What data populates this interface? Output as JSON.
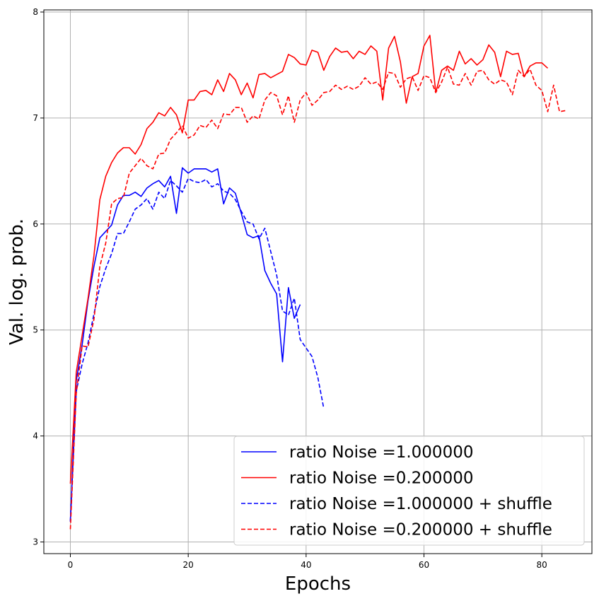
{
  "chart_data": {
    "type": "line",
    "title": "",
    "xlabel": "Epochs",
    "ylabel": "Val. log. prob.",
    "xlim": [
      -4.5,
      88.5
    ],
    "ylim": [
      2.89,
      8.02
    ],
    "xticks": [
      0,
      20,
      40,
      60,
      80
    ],
    "yticks": [
      3,
      4,
      5,
      6,
      7,
      8
    ],
    "xtick_labels": [
      "0",
      "20",
      "40",
      "60",
      "80"
    ],
    "ytick_labels": [
      "3",
      "4",
      "5",
      "6",
      "7",
      "8"
    ],
    "grid": true,
    "legend_position": "lower-right",
    "series": [
      {
        "name": "ratio Noise =1.000000",
        "color": "#0000ff",
        "dash": "solid",
        "y": [
          3.19,
          4.52,
          4.86,
          5.28,
          5.6,
          5.87,
          5.93,
          5.99,
          6.18,
          6.27,
          6.27,
          6.3,
          6.26,
          6.34,
          6.38,
          6.41,
          6.35,
          6.45,
          6.1,
          6.53,
          6.48,
          6.52,
          6.52,
          6.52,
          6.49,
          6.52,
          6.19,
          6.34,
          6.29,
          6.1,
          5.9,
          5.87,
          5.89,
          5.56,
          5.44,
          5.34,
          4.7,
          5.4,
          5.11,
          5.24
        ]
      },
      {
        "name": "ratio Noise =0.200000",
        "color": "#ff0000",
        "dash": "solid",
        "y": [
          3.55,
          4.6,
          4.95,
          5.3,
          5.7,
          6.23,
          6.45,
          6.58,
          6.67,
          6.72,
          6.72,
          6.66,
          6.75,
          6.9,
          6.96,
          7.05,
          7.02,
          7.1,
          7.03,
          6.86,
          7.17,
          7.17,
          7.25,
          7.26,
          7.22,
          7.36,
          7.25,
          7.42,
          7.36,
          7.22,
          7.33,
          7.19,
          7.41,
          7.42,
          7.38,
          7.41,
          7.44,
          7.6,
          7.57,
          7.51,
          7.5,
          7.64,
          7.62,
          7.45,
          7.58,
          7.66,
          7.62,
          7.63,
          7.56,
          7.63,
          7.6,
          7.68,
          7.63,
          7.17,
          7.66,
          7.77,
          7.53,
          7.14,
          7.39,
          7.42,
          7.68,
          7.78,
          7.24,
          7.45,
          7.49,
          7.45,
          7.63,
          7.51,
          7.56,
          7.5,
          7.55,
          7.69,
          7.62,
          7.39,
          7.63,
          7.6,
          7.61,
          7.39,
          7.49,
          7.52,
          7.52,
          7.47
        ]
      },
      {
        "name": "ratio Noise =1.000000 + shuffle",
        "color": "#0000ff",
        "dash": "dashed",
        "y": [
          3.2,
          4.42,
          4.68,
          4.88,
          5.15,
          5.41,
          5.58,
          5.72,
          5.91,
          5.91,
          6.02,
          6.14,
          6.18,
          6.24,
          6.14,
          6.3,
          6.24,
          6.41,
          6.36,
          6.3,
          6.43,
          6.4,
          6.39,
          6.42,
          6.35,
          6.38,
          6.31,
          6.29,
          6.23,
          6.12,
          6.02,
          6.0,
          5.86,
          5.96,
          5.74,
          5.52,
          5.18,
          5.14,
          5.3,
          4.91,
          4.83,
          4.75,
          4.55,
          4.26
        ]
      },
      {
        "name": "ratio Noise =0.200000 + shuffle",
        "color": "#ff0000",
        "dash": "dashed",
        "y": [
          3.12,
          4.4,
          4.85,
          4.84,
          5.1,
          5.6,
          5.82,
          6.19,
          6.24,
          6.25,
          6.48,
          6.55,
          6.62,
          6.55,
          6.52,
          6.66,
          6.67,
          6.8,
          6.86,
          6.93,
          6.81,
          6.84,
          6.93,
          6.91,
          6.98,
          6.9,
          7.04,
          7.03,
          7.1,
          7.1,
          6.96,
          7.02,
          6.99,
          7.17,
          7.24,
          7.21,
          7.03,
          7.21,
          6.96,
          7.17,
          7.24,
          7.12,
          7.17,
          7.24,
          7.25,
          7.31,
          7.27,
          7.3,
          7.27,
          7.3,
          7.38,
          7.32,
          7.34,
          7.27,
          7.43,
          7.42,
          7.29,
          7.37,
          7.39,
          7.26,
          7.4,
          7.38,
          7.24,
          7.34,
          7.48,
          7.32,
          7.31,
          7.42,
          7.31,
          7.44,
          7.45,
          7.36,
          7.32,
          7.36,
          7.34,
          7.22,
          7.45,
          7.39,
          7.46,
          7.31,
          7.26,
          7.06,
          7.31,
          7.06,
          7.07
        ]
      }
    ]
  }
}
